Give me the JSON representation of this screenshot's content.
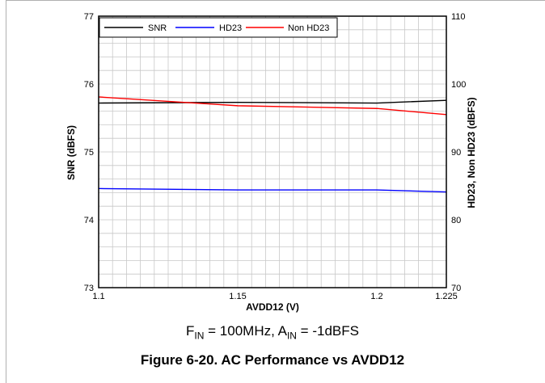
{
  "chart_data": {
    "type": "line",
    "xlabel": "AVDD12 (V)",
    "ylabel_left": "SNR (dBFS)",
    "ylabel_right": "HD23, Non HD23 (dBFS)",
    "xlim": [
      1.1,
      1.225
    ],
    "ylim_left": [
      73,
      77
    ],
    "ylim_right": [
      70,
      110
    ],
    "x_ticks": [
      1.1,
      1.15,
      1.2,
      1.225
    ],
    "x_tick_labels": [
      "1.1",
      "1.15",
      "1.2",
      "1.225"
    ],
    "y_left_ticks": [
      73,
      74,
      75,
      76,
      77
    ],
    "y_right_ticks": [
      70,
      80,
      90,
      100,
      110
    ],
    "grid": true,
    "legend_placement": "top-left",
    "series": [
      {
        "name": "SNR",
        "axis": "left",
        "color": "#000000",
        "x": [
          1.1,
          1.15,
          1.2,
          1.225
        ],
        "y": [
          75.72,
          75.73,
          75.72,
          75.76
        ]
      },
      {
        "name": "HD23",
        "axis": "right",
        "color": "#0000ff",
        "x": [
          1.1,
          1.15,
          1.2,
          1.225
        ],
        "y": [
          84.6,
          84.4,
          84.4,
          84.1
        ]
      },
      {
        "name": "Non HD23",
        "axis": "right",
        "color": "#ff0000",
        "x": [
          1.1,
          1.15,
          1.2,
          1.225
        ],
        "y": [
          98.1,
          96.8,
          96.4,
          95.5
        ]
      }
    ]
  },
  "conditions": {
    "f_main": "F",
    "f_sub": "IN",
    "f_rest": " = 100MHz, A",
    "a_sub": "IN",
    "a_rest": " = -1dBFS"
  },
  "caption": "Figure 6-20. AC Performance vs AVDD12"
}
